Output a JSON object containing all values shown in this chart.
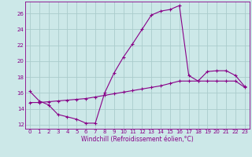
{
  "title": "",
  "xlabel": "Windchill (Refroidissement éolien,°C)",
  "ylabel": "",
  "bg_color": "#cce8e8",
  "grid_color": "#aacccc",
  "line_color": "#880088",
  "xlim": [
    -0.5,
    23.5
  ],
  "ylim": [
    11.5,
    27.5
  ],
  "xticks": [
    0,
    1,
    2,
    3,
    4,
    5,
    6,
    7,
    8,
    9,
    10,
    11,
    12,
    13,
    14,
    15,
    16,
    17,
    18,
    19,
    20,
    21,
    22,
    23
  ],
  "yticks": [
    12,
    14,
    16,
    18,
    20,
    22,
    24,
    26
  ],
  "series1_x": [
    0,
    1,
    2,
    3,
    4,
    5,
    6,
    7,
    8,
    9,
    10,
    11,
    12,
    13,
    14,
    15,
    16,
    17,
    18,
    19,
    20,
    21,
    22,
    23
  ],
  "series1_y": [
    16.2,
    15.0,
    14.5,
    13.3,
    13.0,
    12.7,
    12.2,
    12.2,
    16.0,
    18.5,
    20.5,
    22.2,
    24.0,
    25.8,
    26.3,
    26.5,
    27.0,
    18.2,
    17.5,
    18.7,
    18.8,
    18.8,
    18.2,
    16.8
  ],
  "series2_x": [
    0,
    1,
    2,
    3,
    4,
    5,
    6,
    7,
    8,
    9,
    10,
    11,
    12,
    13,
    14,
    15,
    16,
    17,
    18,
    19,
    20,
    21,
    22,
    23
  ],
  "series2_y": [
    14.8,
    14.8,
    14.9,
    15.0,
    15.1,
    15.2,
    15.3,
    15.5,
    15.7,
    15.9,
    16.1,
    16.3,
    16.5,
    16.7,
    16.9,
    17.2,
    17.5,
    17.5,
    17.5,
    17.5,
    17.5,
    17.5,
    17.5,
    16.7
  ],
  "tick_fontsize": 5.0,
  "xlabel_fontsize": 5.5,
  "marker_size": 3.0,
  "line_width": 0.8
}
